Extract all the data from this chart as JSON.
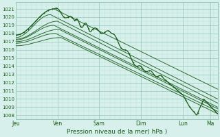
{
  "title": "",
  "xlabel": "Pression niveau de la mer( hPa )",
  "bg_color": "#d8f0ec",
  "grid_color_major": "#90c8b8",
  "grid_color_minor": "#b8ddd6",
  "line_color": "#1a5c1a",
  "ylim": [
    1007.5,
    1021.8
  ],
  "xlim": [
    0,
    116
  ],
  "day_labels": [
    "Jeu",
    "Ven",
    "Sam",
    "Dim",
    "Lun",
    "Ma"
  ],
  "day_positions": [
    0,
    24,
    48,
    72,
    96,
    112
  ],
  "yticks": [
    1008,
    1009,
    1010,
    1011,
    1012,
    1013,
    1014,
    1015,
    1016,
    1017,
    1018,
    1019,
    1020,
    1021
  ]
}
